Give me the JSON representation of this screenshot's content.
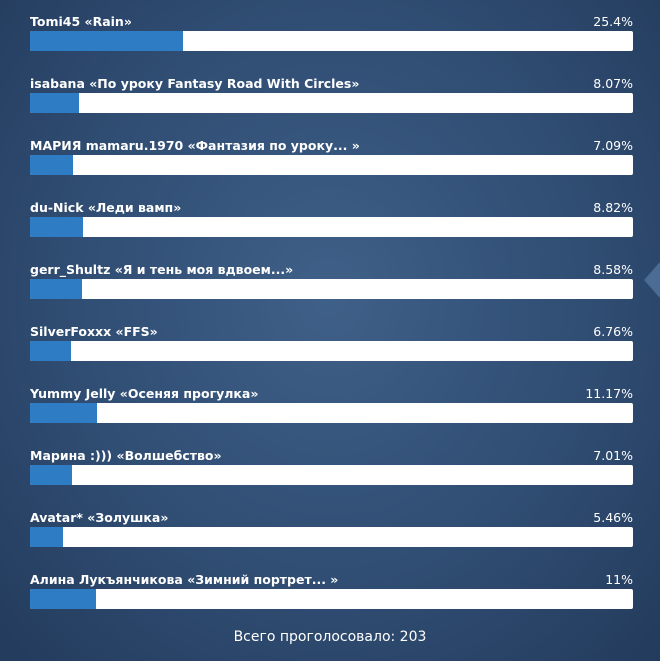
{
  "poll": {
    "items": [
      {
        "title": "Tomi45 «Rain»",
        "percent_label": "25.4%",
        "percent": 25.4
      },
      {
        "title": "isabana «По уроку Fantasy Road With Circles»",
        "percent_label": "8.07%",
        "percent": 8.07
      },
      {
        "title": "МАРИЯ mamaru.1970 «Фантазия по уроку... »",
        "percent_label": "7.09%",
        "percent": 7.09
      },
      {
        "title": "du-Nick «Леди вамп»",
        "percent_label": "8.82%",
        "percent": 8.82
      },
      {
        "title": "gerr_Shultz «Я и тень моя вдвоем...»",
        "percent_label": "8.58%",
        "percent": 8.58
      },
      {
        "title": "SilverFoxxx «FFS»",
        "percent_label": "6.76%",
        "percent": 6.76
      },
      {
        "title": "Yummy Jelly «Осеняя прогулка»",
        "percent_label": "11.17%",
        "percent": 11.17
      },
      {
        "title": "Марина :))) «Волшебство»",
        "percent_label": "7.01%",
        "percent": 7.01
      },
      {
        "title": "Avatar* «Золушка»",
        "percent_label": "5.46%",
        "percent": 5.46
      },
      {
        "title": "Алина Лукъянчикова «Зимний портрет... »",
        "percent_label": "11%",
        "percent": 11
      }
    ],
    "total_label": "Всего проголосовало: 203"
  },
  "colors": {
    "bar_fill": "#2d7cc4",
    "bar_track": "#ffffff",
    "background": "#304d73"
  }
}
